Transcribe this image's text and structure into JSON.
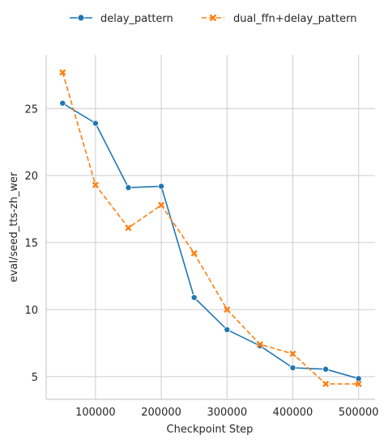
{
  "chart_data": {
    "type": "line",
    "xlabel": "Checkpoint Step",
    "ylabel": "eval/seed_tts-zh_wer",
    "xlim": [
      25000,
      525000
    ],
    "ylim": [
      3.3,
      29.0
    ],
    "xticks": [
      100000,
      200000,
      300000,
      400000,
      500000
    ],
    "xtick_labels": [
      "100000",
      "200000",
      "300000",
      "400000",
      "500000"
    ],
    "yticks": [
      5,
      10,
      15,
      20,
      25
    ],
    "ytick_labels": [
      "5",
      "10",
      "15",
      "20",
      "25"
    ],
    "grid": true,
    "legend_position": "top-center",
    "series": [
      {
        "name": "delay_pattern",
        "color": "#1f77b4",
        "line_style": "solid",
        "marker": "circle",
        "x": [
          50000,
          100000,
          150000,
          200000,
          250000,
          300000,
          350000,
          400000,
          450000,
          500000
        ],
        "y": [
          25.4,
          23.9,
          19.1,
          19.2,
          10.9,
          8.5,
          7.3,
          5.65,
          5.55,
          4.85
        ]
      },
      {
        "name": "dual_ffn+delay_pattern",
        "color": "#ff7f0e",
        "line_style": "dashed",
        "marker": "x",
        "x": [
          50000,
          100000,
          150000,
          200000,
          250000,
          300000,
          350000,
          400000,
          450000,
          500000
        ],
        "y": [
          27.7,
          19.3,
          16.1,
          17.8,
          14.2,
          10.0,
          7.4,
          6.7,
          4.45,
          4.45
        ]
      }
    ]
  }
}
